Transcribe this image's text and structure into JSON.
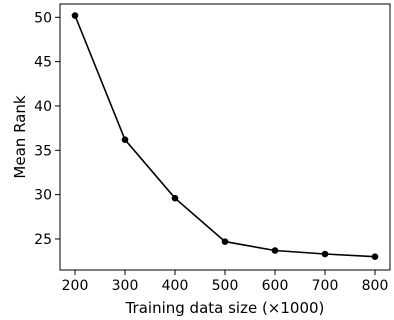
{
  "chart_data": {
    "type": "line",
    "title": "",
    "xlabel": "Training data size (×1000)",
    "ylabel": "Mean Rank",
    "xlim": [
      170,
      830
    ],
    "ylim": [
      21.5,
      51.5
    ],
    "xticks": [
      200,
      300,
      400,
      500,
      600,
      700,
      800
    ],
    "yticks": [
      25,
      30,
      35,
      40,
      45,
      50
    ],
    "grid": false,
    "legend": "none",
    "series": [
      {
        "x": [
          200,
          300,
          400,
          500,
          600,
          700,
          800
        ],
        "y": [
          50.2,
          36.2,
          29.6,
          24.7,
          23.7,
          23.3,
          23.0
        ],
        "color": "#000000",
        "marker": "circle"
      }
    ]
  }
}
